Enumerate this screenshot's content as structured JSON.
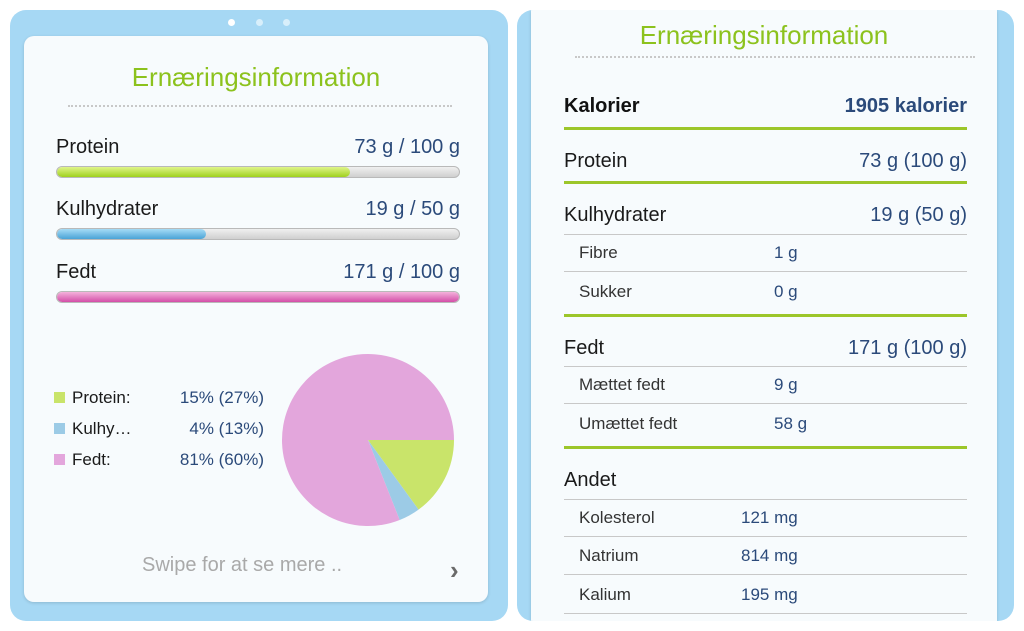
{
  "left": {
    "title": "Ernæringsinformation",
    "bars": [
      {
        "label": "Protein",
        "value": "73 g / 100 g",
        "fraction": 0.73,
        "color": "#9fd11c"
      },
      {
        "label": "Kulhydrater",
        "value": "19 g / 50 g",
        "fraction": 0.37,
        "color": "#4aa3d6"
      },
      {
        "label": "Fedt",
        "value": "171 g / 100 g",
        "fraction": 1.0,
        "color": "#d34ea8"
      }
    ],
    "legend": [
      {
        "name": "Protein:",
        "value": "15% (27%)",
        "color": "#c9e46a"
      },
      {
        "name": "Kulhy…",
        "value": "4% (13%)",
        "color": "#9ccbe6"
      },
      {
        "name": "Fedt:",
        "value": "81% (60%)",
        "color": "#e3a6dc"
      }
    ],
    "swipe_text": "Swipe for at se mere ..",
    "chevron_icon": "chevron-right-icon"
  },
  "chart_data": {
    "type": "pie",
    "categories": [
      "Protein",
      "Kulhydrater",
      "Fedt"
    ],
    "values": [
      15,
      4,
      81
    ],
    "colors": [
      "#c9e46a",
      "#9ccbe6",
      "#e3a6dc"
    ]
  },
  "right": {
    "title": "Ernæringsinformation",
    "calories": {
      "label": "Kalorier",
      "value": "1905 kalorier"
    },
    "protein": {
      "label": "Protein",
      "value": "73 g (100 g)"
    },
    "carbs": {
      "label": "Kulhydrater",
      "value": "19 g (50 g)"
    },
    "carbs_sub": [
      {
        "label": "Fibre",
        "value": "1 g"
      },
      {
        "label": "Sukker",
        "value": "0 g"
      }
    ],
    "fat": {
      "label": "Fedt",
      "value": "171 g (100 g)"
    },
    "fat_sub": [
      {
        "label": "Mættet fedt",
        "value": "9 g"
      },
      {
        "label": "Umættet fedt",
        "value": "58 g"
      }
    ],
    "other": {
      "label": "Andet"
    },
    "other_sub": [
      {
        "label": "Kolesterol",
        "value": "121 mg"
      },
      {
        "label": "Natrium",
        "value": "814 mg"
      },
      {
        "label": "Kalium",
        "value": "195 mg"
      }
    ]
  }
}
